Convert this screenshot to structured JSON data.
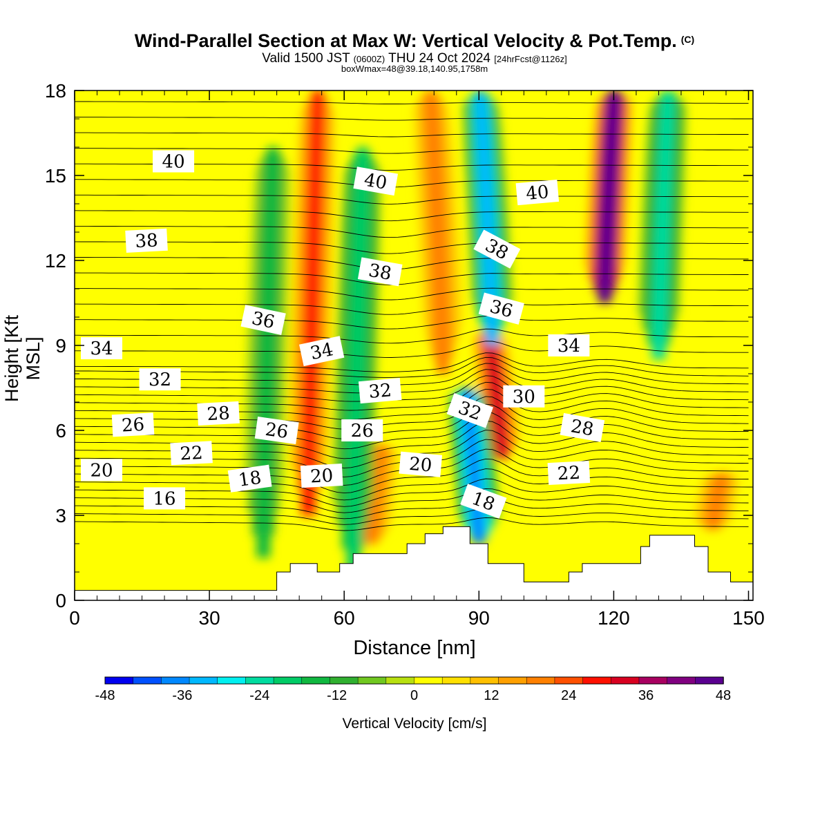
{
  "title": {
    "main": "Wind-Parallel Section at Max W: Vertical Velocity & Pot.Temp.",
    "copyright": "(C)",
    "valid_a": "Valid 1500 JST",
    "valid_zone": "(0600Z)",
    "valid_b": "THU 24 Oct 2024",
    "forecast": "[24hrFcst@1126z]",
    "box": "boxWmax=48@39.18,140.95,1758m"
  },
  "chart_data": {
    "type": "heatmap",
    "xlabel": "Distance [nm]",
    "ylabel": "Height [Kft MSL]",
    "xlim": [
      0,
      151
    ],
    "ylim": [
      0,
      18
    ],
    "xticks": [
      0,
      30,
      60,
      90,
      120,
      150
    ],
    "yticks": [
      0,
      3,
      6,
      9,
      12,
      15,
      18
    ],
    "colorbar": {
      "label": "Vertical Velocity [cm/s]",
      "range": [
        -48,
        48
      ],
      "ticks": [
        -48,
        -36,
        -24,
        -12,
        0,
        12,
        24,
        36,
        48
      ],
      "colors": [
        "#0000f0",
        "#0050ff",
        "#0088ff",
        "#00b8ff",
        "#00f0f0",
        "#00dca0",
        "#00cc66",
        "#10b840",
        "#30b030",
        "#70c820",
        "#b8e010",
        "#ffff00",
        "#ffe000",
        "#ffc000",
        "#ffa000",
        "#ff8000",
        "#ff5000",
        "#ff1000",
        "#d80020",
        "#a80060",
        "#800080",
        "#5a0090"
      ]
    },
    "updrafts": [
      {
        "x": 52,
        "z_bottom": 3.0,
        "z_top": 18,
        "peak_w": 28
      },
      {
        "x": 66,
        "z_bottom": 2.0,
        "z_top": 5.5,
        "peak_w": 20
      },
      {
        "x": 82,
        "z_bottom": 8.0,
        "z_top": 18,
        "peak_w": 20
      },
      {
        "x": 95,
        "z_bottom": 5.0,
        "z_top": 9.5,
        "peak_w": 34
      },
      {
        "x": 118,
        "z_bottom": 10.5,
        "z_top": 18,
        "peak_w": 48
      },
      {
        "x": 142,
        "z_bottom": 2.5,
        "z_top": 4.5,
        "peak_w": 18
      }
    ],
    "downdrafts": [
      {
        "x": 42,
        "z_bottom": 1.5,
        "z_top": 16,
        "peak_w": -16
      },
      {
        "x": 62,
        "z_bottom": 1.0,
        "z_top": 16,
        "peak_w": -20
      },
      {
        "x": 90,
        "z_bottom": 2.0,
        "z_top": 7.5,
        "peak_w": -38
      },
      {
        "x": 93,
        "z_bottom": 9.0,
        "z_top": 18,
        "peak_w": -34
      },
      {
        "x": 130,
        "z_bottom": 8.5,
        "z_top": 18,
        "peak_w": -22
      }
    ],
    "terrain": [
      [
        0,
        0.35
      ],
      [
        45,
        0.35
      ],
      [
        45,
        1.0
      ],
      [
        48,
        1.0
      ],
      [
        48,
        1.3
      ],
      [
        54,
        1.3
      ],
      [
        54,
        1.0
      ],
      [
        59,
        1.0
      ],
      [
        59,
        1.3
      ],
      [
        62,
        1.3
      ],
      [
        62,
        1.65
      ],
      [
        74,
        1.65
      ],
      [
        74,
        2.0
      ],
      [
        78,
        2.0
      ],
      [
        78,
        2.35
      ],
      [
        82,
        2.35
      ],
      [
        82,
        2.6
      ],
      [
        88,
        2.6
      ],
      [
        88,
        2.0
      ],
      [
        92,
        2.0
      ],
      [
        92,
        1.3
      ],
      [
        95,
        1.3
      ],
      [
        95,
        1.3
      ],
      [
        100,
        1.3
      ],
      [
        100,
        0.65
      ],
      [
        110,
        0.65
      ],
      [
        110,
        1.0
      ],
      [
        113,
        1.0
      ],
      [
        113,
        1.3
      ],
      [
        126,
        1.3
      ],
      [
        126,
        1.9
      ],
      [
        128,
        1.9
      ],
      [
        128,
        2.3
      ],
      [
        138,
        2.3
      ],
      [
        138,
        1.9
      ],
      [
        141,
        1.9
      ],
      [
        141,
        1.0
      ],
      [
        146,
        1.0
      ],
      [
        146,
        0.65
      ],
      [
        151,
        0.65
      ]
    ],
    "isentrope_labels": [
      {
        "value": "40",
        "x": 22,
        "z": 15.5,
        "rot": 0
      },
      {
        "value": "40",
        "x": 67,
        "z": 14.8,
        "rot": 10
      },
      {
        "value": "40",
        "x": 103,
        "z": 14.4,
        "rot": -5
      },
      {
        "value": "38",
        "x": 16,
        "z": 12.7,
        "rot": -3
      },
      {
        "value": "38",
        "x": 68,
        "z": 11.6,
        "rot": 10
      },
      {
        "value": "38",
        "x": 94,
        "z": 12.4,
        "rot": 28
      },
      {
        "value": "36",
        "x": 42,
        "z": 9.9,
        "rot": 12
      },
      {
        "value": "36",
        "x": 95,
        "z": 10.3,
        "rot": 15
      },
      {
        "value": "34",
        "x": 6,
        "z": 8.9,
        "rot": 0
      },
      {
        "value": "34",
        "x": 55,
        "z": 8.8,
        "rot": -12
      },
      {
        "value": "34",
        "x": 110,
        "z": 9.0,
        "rot": 0
      },
      {
        "value": "32",
        "x": 19,
        "z": 7.8,
        "rot": 0
      },
      {
        "value": "32",
        "x": 68,
        "z": 7.4,
        "rot": -5
      },
      {
        "value": "32",
        "x": 88,
        "z": 6.7,
        "rot": 20
      },
      {
        "value": "30",
        "x": 100,
        "z": 7.2,
        "rot": 0
      },
      {
        "value": "28",
        "x": 32,
        "z": 6.6,
        "rot": -3
      },
      {
        "value": "28",
        "x": 113,
        "z": 6.1,
        "rot": 10
      },
      {
        "value": "26",
        "x": 13,
        "z": 6.2,
        "rot": -3
      },
      {
        "value": "26",
        "x": 45,
        "z": 6.0,
        "rot": 8
      },
      {
        "value": "26",
        "x": 64,
        "z": 6.0,
        "rot": 0
      },
      {
        "value": "22",
        "x": 26,
        "z": 5.2,
        "rot": -3
      },
      {
        "value": "22",
        "x": 110,
        "z": 4.5,
        "rot": -3
      },
      {
        "value": "20",
        "x": 6,
        "z": 4.6,
        "rot": 0
      },
      {
        "value": "20",
        "x": 55,
        "z": 4.4,
        "rot": -3
      },
      {
        "value": "20",
        "x": 77,
        "z": 4.8,
        "rot": 5
      },
      {
        "value": "18",
        "x": 39,
        "z": 4.3,
        "rot": -8
      },
      {
        "value": "18",
        "x": 91,
        "z": 3.5,
        "rot": 20
      },
      {
        "value": "16",
        "x": 20,
        "z": 3.6,
        "rot": 0
      }
    ]
  }
}
